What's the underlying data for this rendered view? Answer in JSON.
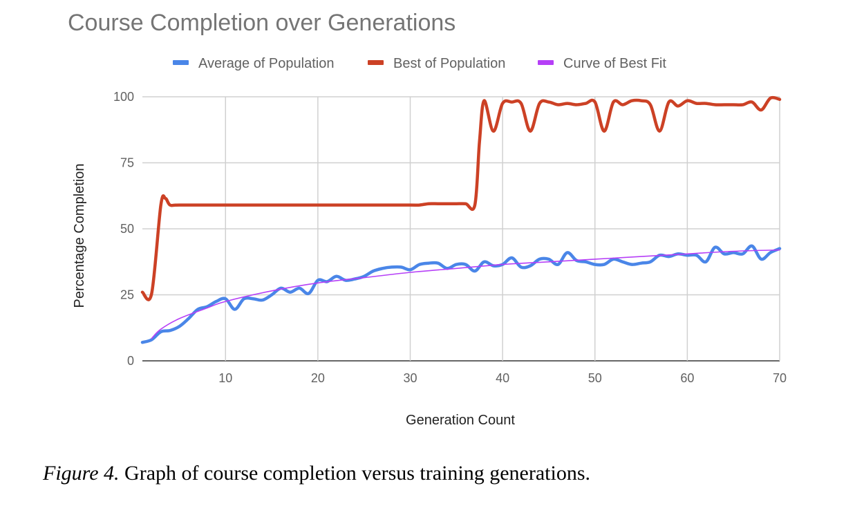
{
  "chart_data": {
    "type": "line",
    "title": "Course Completion over Generations",
    "xlabel": "Generation Count",
    "ylabel": "Percentage Completion",
    "xlim": [
      1,
      70
    ],
    "ylim": [
      0,
      100
    ],
    "x_ticks": [
      "10",
      "20",
      "30",
      "40",
      "50",
      "60",
      "70"
    ],
    "y_ticks": [
      "0",
      "25",
      "50",
      "75",
      "100"
    ],
    "grid": true,
    "legend_position": "top",
    "series": [
      {
        "name": "Average of Population",
        "color": "#4a86e8",
        "line": "thick",
        "points": [
          [
            1,
            7
          ],
          [
            2,
            8
          ],
          [
            3,
            11
          ],
          [
            4,
            11.5
          ],
          [
            5,
            13
          ],
          [
            6,
            16
          ],
          [
            7,
            19.5
          ],
          [
            8,
            20.5
          ],
          [
            9,
            22.5
          ],
          [
            10,
            23.5
          ],
          [
            11,
            19.5
          ],
          [
            12,
            23.5
          ],
          [
            13,
            23.5
          ],
          [
            14,
            23
          ],
          [
            15,
            25
          ],
          [
            16,
            27.5
          ],
          [
            17,
            26
          ],
          [
            18,
            27.5
          ],
          [
            19,
            25.5
          ],
          [
            20,
            30.5
          ],
          [
            21,
            30
          ],
          [
            22,
            32
          ],
          [
            23,
            30.5
          ],
          [
            24,
            31
          ],
          [
            25,
            32
          ],
          [
            26,
            34
          ],
          [
            27,
            35
          ],
          [
            28,
            35.5
          ],
          [
            29,
            35.5
          ],
          [
            30,
            34.5
          ],
          [
            31,
            36.5
          ],
          [
            32,
            37
          ],
          [
            33,
            37
          ],
          [
            34,
            35
          ],
          [
            35,
            36.5
          ],
          [
            36,
            36.5
          ],
          [
            37,
            34
          ],
          [
            38,
            37.5
          ],
          [
            39,
            36
          ],
          [
            40,
            36.5
          ],
          [
            41,
            39
          ],
          [
            42,
            35.5
          ],
          [
            43,
            36
          ],
          [
            44,
            38.5
          ],
          [
            45,
            38.5
          ],
          [
            46,
            36.5
          ],
          [
            47,
            41
          ],
          [
            48,
            38
          ],
          [
            49,
            37.5
          ],
          [
            50,
            36.5
          ],
          [
            51,
            36.5
          ],
          [
            52,
            38.5
          ],
          [
            53,
            37.5
          ],
          [
            54,
            36.5
          ],
          [
            55,
            37
          ],
          [
            56,
            37.5
          ],
          [
            57,
            40
          ],
          [
            58,
            39.5
          ],
          [
            59,
            40.5
          ],
          [
            60,
            40
          ],
          [
            61,
            40
          ],
          [
            62,
            37.5
          ],
          [
            63,
            43
          ],
          [
            64,
            40.5
          ],
          [
            65,
            41
          ],
          [
            66,
            40.5
          ],
          [
            67,
            43.5
          ],
          [
            68,
            38.5
          ],
          [
            69,
            41
          ],
          [
            70,
            42.5
          ]
        ]
      },
      {
        "name": "Best of Population",
        "color": "#cc4125",
        "line": "thick",
        "points": [
          [
            1,
            26
          ],
          [
            2,
            25.5
          ],
          [
            3,
            59
          ],
          [
            3.5,
            61.5
          ],
          [
            4,
            59
          ],
          [
            5,
            59
          ],
          [
            10,
            59
          ],
          [
            15,
            59
          ],
          [
            20,
            59
          ],
          [
            25,
            59
          ],
          [
            30,
            59
          ],
          [
            31,
            59
          ],
          [
            32,
            59.5
          ],
          [
            33,
            59.5
          ],
          [
            34,
            59.5
          ],
          [
            35,
            59.5
          ],
          [
            36,
            59.5
          ],
          [
            37,
            59
          ],
          [
            37.5,
            83
          ],
          [
            38,
            98.5
          ],
          [
            39,
            87
          ],
          [
            40,
            97.5
          ],
          [
            41,
            98
          ],
          [
            42,
            97.5
          ],
          [
            43,
            87
          ],
          [
            44,
            97.5
          ],
          [
            45,
            98
          ],
          [
            46,
            97
          ],
          [
            47,
            97.5
          ],
          [
            48,
            97
          ],
          [
            49,
            97.5
          ],
          [
            50,
            98
          ],
          [
            51,
            87
          ],
          [
            52,
            98
          ],
          [
            53,
            97
          ],
          [
            54,
            98.5
          ],
          [
            55,
            98.5
          ],
          [
            56,
            97
          ],
          [
            57,
            87
          ],
          [
            58,
            98
          ],
          [
            59,
            96.5
          ],
          [
            60,
            98.5
          ],
          [
            61,
            97.5
          ],
          [
            62,
            97.5
          ],
          [
            63,
            97
          ],
          [
            64,
            97
          ],
          [
            65,
            97
          ],
          [
            66,
            97
          ],
          [
            67,
            98
          ],
          [
            68,
            95
          ],
          [
            69,
            99.5
          ],
          [
            70,
            99
          ]
        ]
      },
      {
        "name": "Curve of Best Fit",
        "color": "#b63ff7",
        "line": "thin",
        "fit": "logarithmic",
        "points": [
          [
            2,
            8.5
          ],
          [
            3,
            12
          ],
          [
            5,
            16
          ],
          [
            8,
            20
          ],
          [
            10,
            22.5
          ],
          [
            15,
            26.5
          ],
          [
            20,
            29.5
          ],
          [
            25,
            31.5
          ],
          [
            30,
            33.5
          ],
          [
            35,
            35
          ],
          [
            40,
            36.5
          ],
          [
            45,
            37.5
          ],
          [
            50,
            38.5
          ],
          [
            55,
            39.5
          ],
          [
            60,
            40.5
          ],
          [
            65,
            41.5
          ],
          [
            70,
            42
          ]
        ]
      }
    ]
  },
  "caption": {
    "lead": "Figure 4.",
    "text": " Graph of course completion versus training generations."
  }
}
